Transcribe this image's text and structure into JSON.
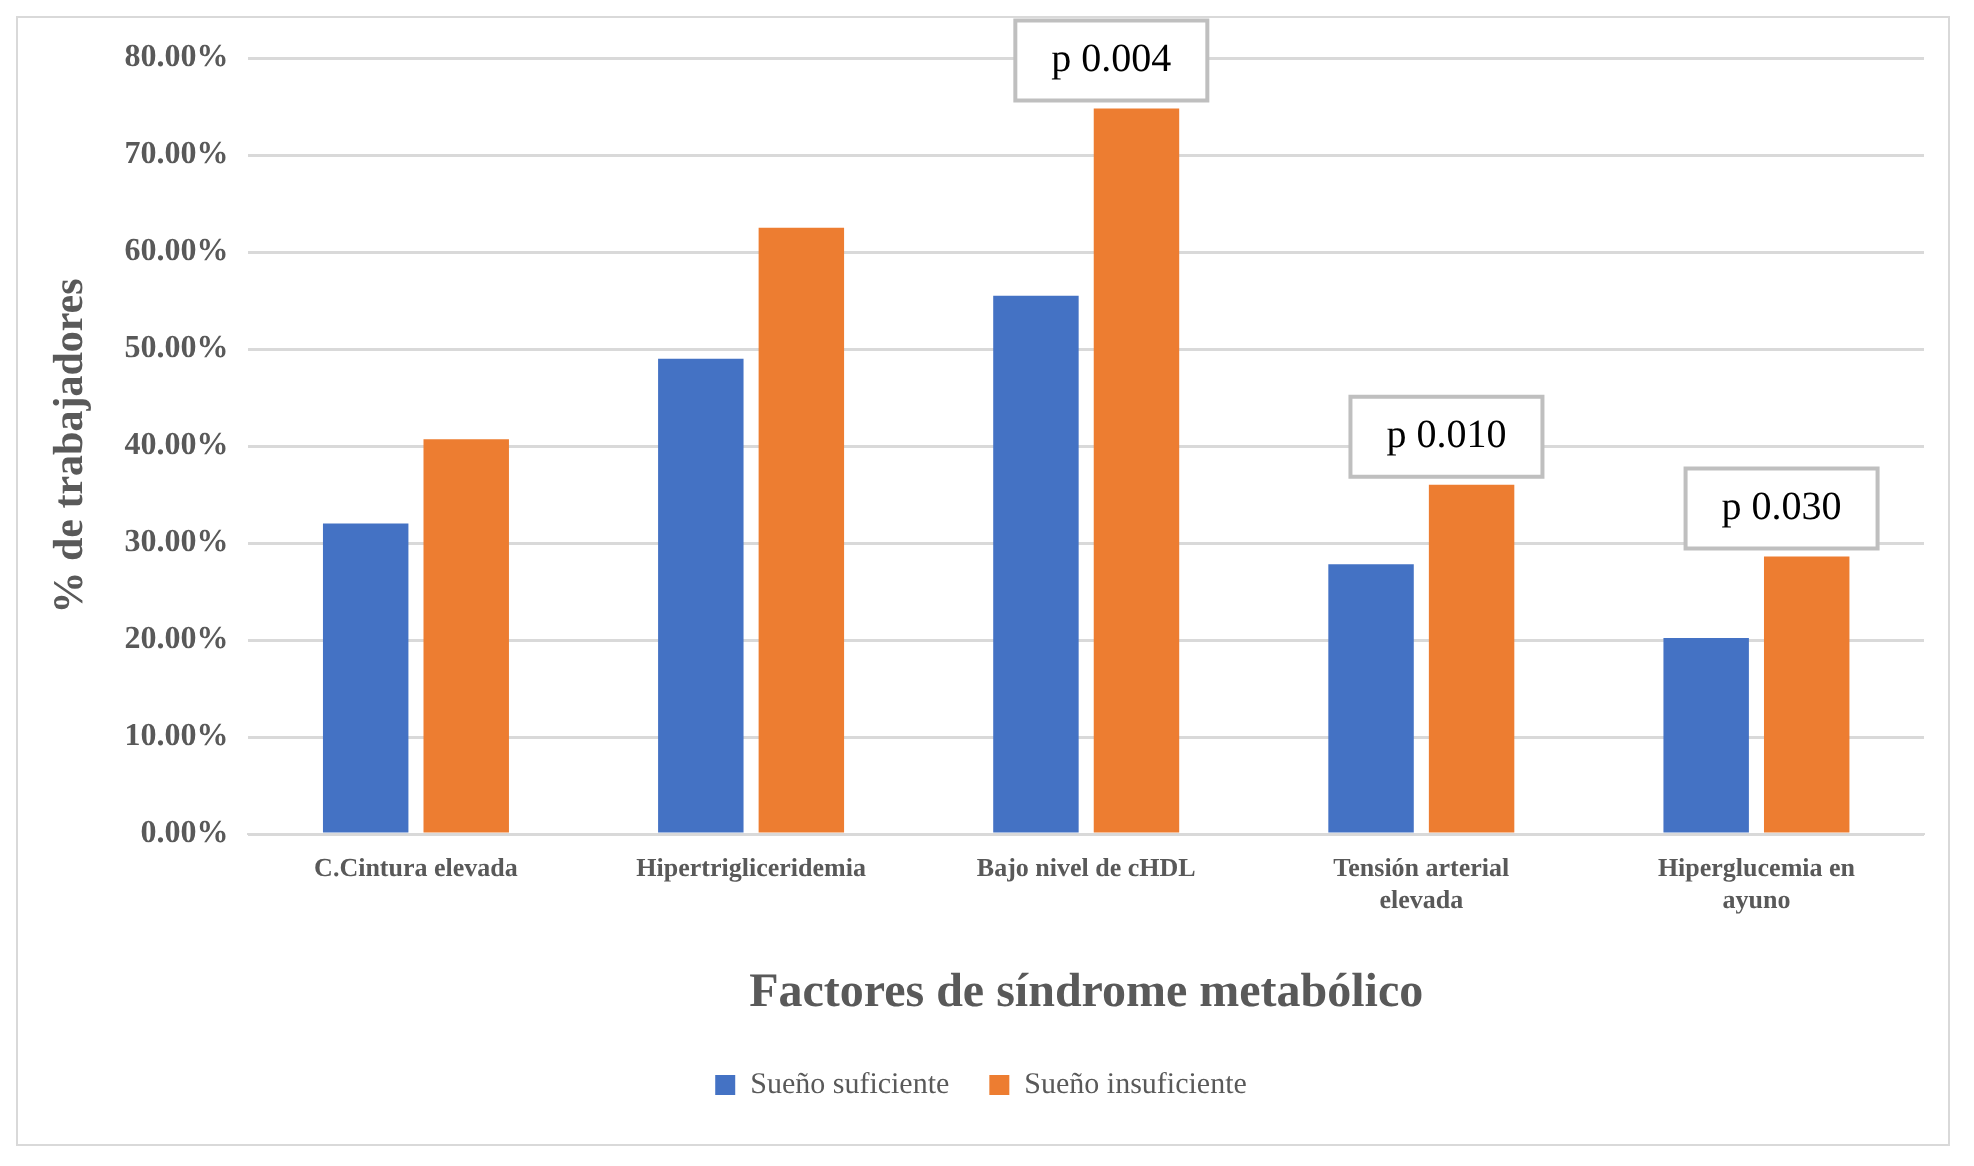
{
  "chart_data": {
    "type": "bar",
    "xlabel": "Factores de síndrome metabólico",
    "ylabel": "% de trabajadores",
    "categories": [
      "C.Cintura elevada",
      "Hipertrigliceridemia",
      "Bajo nivel de cHDL",
      "Tensión arterial elevada",
      "Hiperglucemia en ayuno"
    ],
    "series": [
      {
        "name": "Sueño suficiente",
        "color": "#4472c4",
        "values": [
          32.0,
          49.0,
          55.5,
          27.8,
          20.2
        ]
      },
      {
        "name": "Sueño insuficiente",
        "color": "#ed7d31",
        "values": [
          40.7,
          62.5,
          74.8,
          36.0,
          28.6
        ]
      }
    ],
    "ylim": [
      0,
      80
    ],
    "yticks": [
      {
        "value": 0,
        "label": "0.00%"
      },
      {
        "value": 10,
        "label": "10.00%"
      },
      {
        "value": 20,
        "label": "20.00%"
      },
      {
        "value": 30,
        "label": "30.00%"
      },
      {
        "value": 40,
        "label": "40.00%"
      },
      {
        "value": 50,
        "label": "50.00%"
      },
      {
        "value": 60,
        "label": "60.00%"
      },
      {
        "value": 70,
        "label": "70.00%"
      },
      {
        "value": 80,
        "label": "80.00%"
      }
    ],
    "annotations": [
      {
        "text": "p 0.004",
        "x": "Bajo nivel de cHDL",
        "y": 74.8
      },
      {
        "text": "p 0.010",
        "x": "Tensión arterial elevada",
        "y": 36.0
      },
      {
        "text": "p 0.030",
        "x": "Hiperglucemia en ayuno",
        "y": 28.6
      }
    ],
    "grid": "y",
    "legend": "bottom"
  }
}
